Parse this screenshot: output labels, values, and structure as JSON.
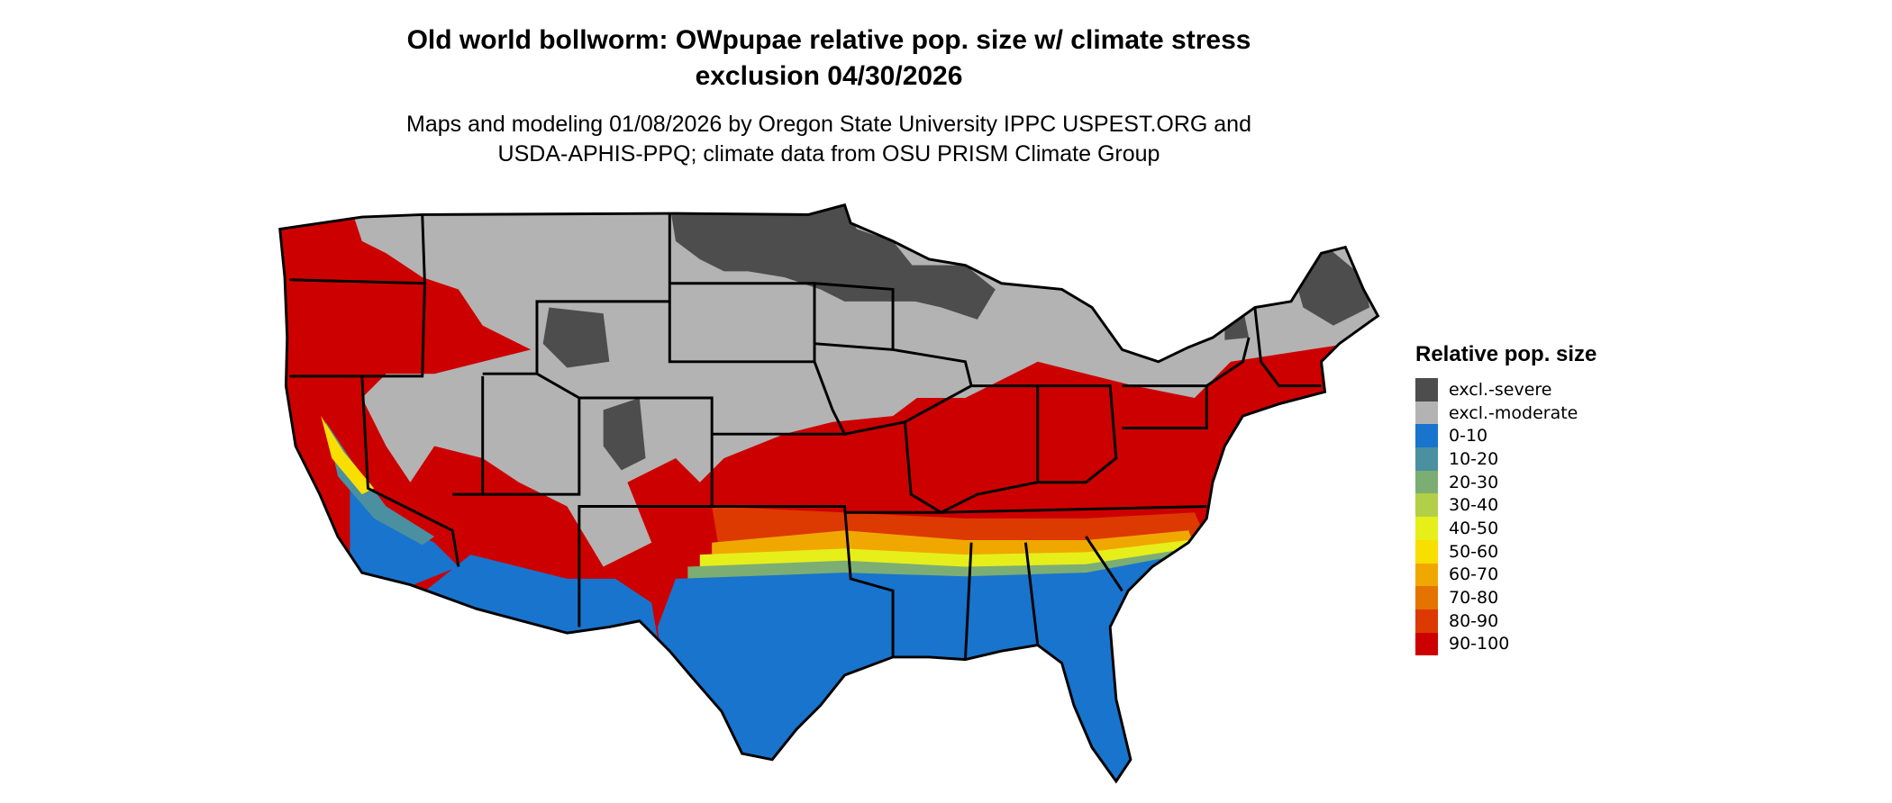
{
  "title": {
    "line1": "Old world bollworm: OWpupae relative pop. size w/ climate stress",
    "line2": "exclusion 04/30/2026"
  },
  "subtitle": {
    "line1": "Maps and modeling 01/08/2026 by Oregon State University IPPC USPEST.ORG and",
    "line2": "USDA-APHIS-PPQ; climate data from OSU PRISM Climate Group"
  },
  "legend": {
    "title": "Relative pop. size",
    "items": [
      {
        "label": "excl.-severe",
        "color": "#4d4d4d"
      },
      {
        "label": "excl.-moderate",
        "color": "#b3b3b3"
      },
      {
        "label": "0-10",
        "color": "#1874cd"
      },
      {
        "label": "10-20",
        "color": "#4a90a0"
      },
      {
        "label": "20-30",
        "color": "#7cae74"
      },
      {
        "label": "30-40",
        "color": "#b3cf48"
      },
      {
        "label": "40-50",
        "color": "#e6ef1a"
      },
      {
        "label": "50-60",
        "color": "#f9df00"
      },
      {
        "label": "60-70",
        "color": "#f0a800"
      },
      {
        "label": "70-80",
        "color": "#e57300"
      },
      {
        "label": "80-90",
        "color": "#dc3a00"
      },
      {
        "label": "90-100",
        "color": "#cd0000"
      }
    ]
  }
}
